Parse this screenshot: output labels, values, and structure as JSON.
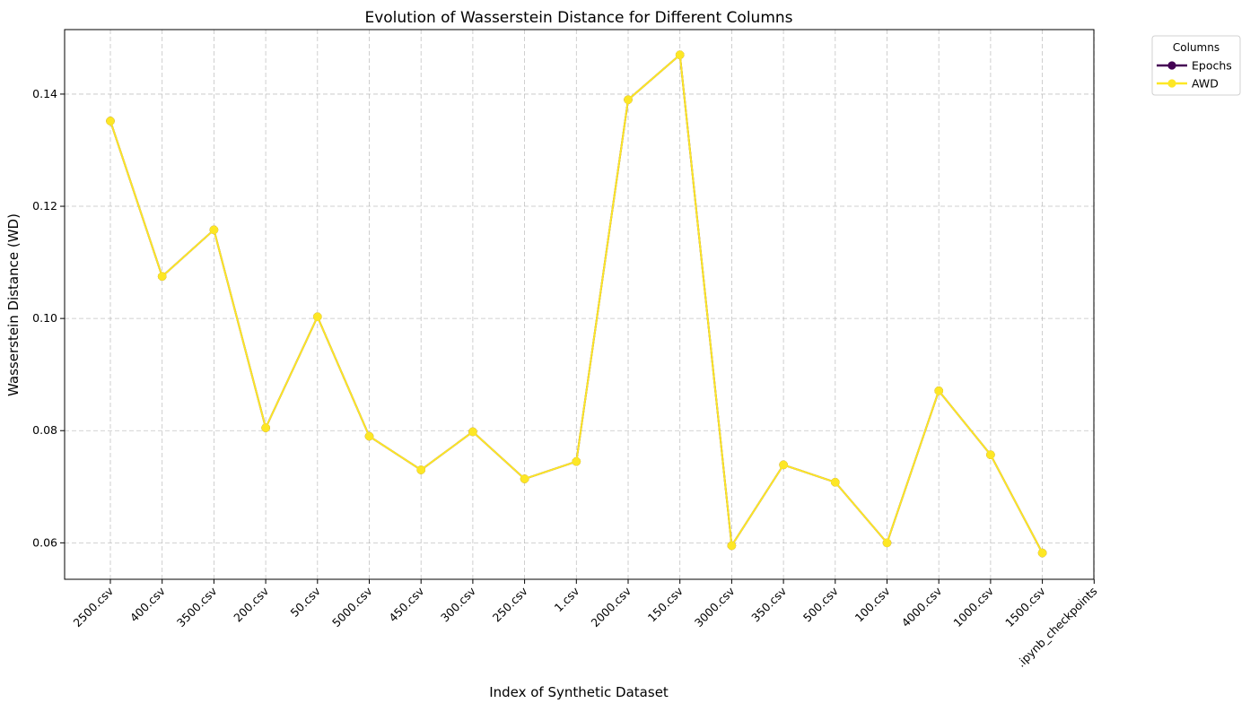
{
  "chart_data": {
    "type": "line",
    "title": "Evolution of Wasserstein Distance for Different Columns",
    "xlabel": "Index of Synthetic Dataset",
    "ylabel": "Wasserstein Distance (WD)",
    "categories": [
      "2500.csv",
      "400.csv",
      "3500.csv",
      "200.csv",
      "50.csv",
      "5000.csv",
      "450.csv",
      "300.csv",
      "250.csv",
      "1.csv",
      "2000.csv",
      "150.csv",
      "3000.csv",
      "350.csv",
      "500.csv",
      "100.csv",
      "4000.csv",
      "1000.csv",
      "1500.csv",
      ".ipynb_checkpoints"
    ],
    "yticks": [
      0.06,
      0.08,
      0.1,
      0.12,
      0.14
    ],
    "ytick_labels": [
      "0.06",
      "0.08",
      "0.10",
      "0.12",
      "0.14"
    ],
    "ylim": [
      0.0535,
      0.1515
    ],
    "grid": true,
    "legend": {
      "title": "Columns",
      "placement": "outside-top-right"
    },
    "series": [
      {
        "name": "Epochs",
        "color": "#440154",
        "values": [
          0.1352,
          0.1075,
          0.1158,
          0.0805,
          0.1003,
          0.079,
          0.073,
          0.0798,
          0.0714,
          0.0745,
          0.139,
          0.147,
          0.0595,
          0.0739,
          0.0708,
          0.06,
          0.0871,
          0.0757,
          0.0582,
          null
        ]
      },
      {
        "name": "AWD",
        "color": "#fde725",
        "values": [
          0.1352,
          0.1075,
          0.1158,
          0.0805,
          0.1003,
          0.079,
          0.073,
          0.0798,
          0.0714,
          0.0745,
          0.139,
          0.147,
          0.0595,
          0.0739,
          0.0708,
          0.06,
          0.0871,
          0.0757,
          0.0582,
          null
        ]
      }
    ]
  }
}
